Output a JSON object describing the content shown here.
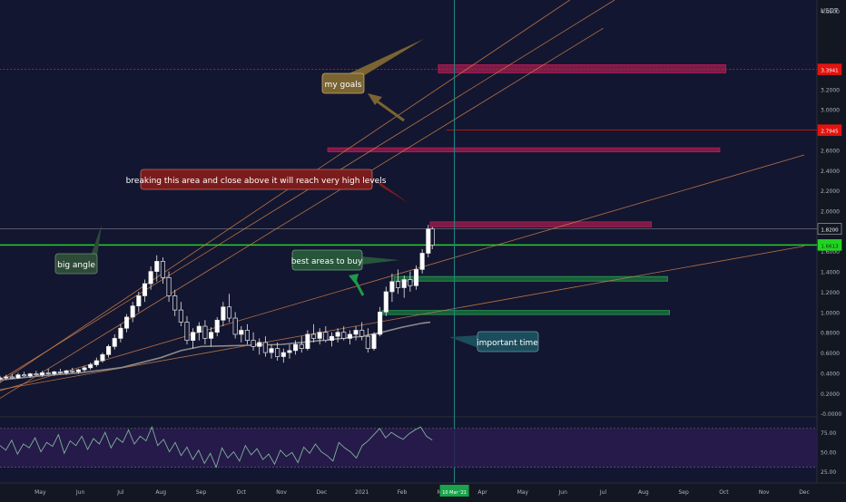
{
  "chart_data": {
    "type": "candlestick",
    "price_axis": {
      "unit_label": "USDT",
      "tick_labels": [
        "4.0000",
        "3.2000",
        "3.0000",
        "2.8000",
        "2.6000",
        "2.4000",
        "2.2000",
        "2.0000",
        "1.8000",
        "1.6000",
        "1.4000",
        "1.2000",
        "1.0000",
        "0.8000",
        "0.6000",
        "0.4000",
        "0.2000",
        "-0.0000"
      ],
      "tick_values": [
        4.0,
        3.2,
        3.0,
        2.8,
        2.6,
        2.4,
        2.2,
        2.0,
        1.8,
        1.6,
        1.4,
        1.2,
        1.0,
        0.8,
        0.6,
        0.4,
        0.2,
        0.0
      ],
      "ylim": [
        -0.05,
        4.15
      ]
    },
    "time_axis": {
      "labels": [
        "Apr",
        "May",
        "Jun",
        "Jul",
        "Aug",
        "Sep",
        "Oct",
        "Nov",
        "Dec",
        "2021",
        "Feb",
        "Mar",
        "Apr",
        "May",
        "Jun",
        "Jul",
        "Aug",
        "Sep",
        "Oct",
        "Nov",
        "Dec"
      ],
      "cursor_label": "10 Mar '21",
      "cursor_month_index": 11.3
    },
    "price_badges": [
      {
        "value": 3.3941,
        "text": "3.3941",
        "color": "#e3130f"
      },
      {
        "value": 2.7945,
        "text": "2.7945",
        "color": "#e3130f"
      },
      {
        "value": 1.82,
        "text": "1.8200",
        "color": "#131722"
      },
      {
        "value": 1.6613,
        "text": "1.6613",
        "color": "#22d422"
      }
    ],
    "candles": [
      {
        "m": 0.0,
        "o": 0.34,
        "h": 0.37,
        "l": 0.31,
        "c": 0.35
      },
      {
        "m": 0.15,
        "o": 0.35,
        "h": 0.38,
        "l": 0.33,
        "c": 0.36
      },
      {
        "m": 0.3,
        "o": 0.36,
        "h": 0.39,
        "l": 0.34,
        "c": 0.35
      },
      {
        "m": 0.45,
        "o": 0.35,
        "h": 0.4,
        "l": 0.34,
        "c": 0.38
      },
      {
        "m": 0.6,
        "o": 0.38,
        "h": 0.41,
        "l": 0.36,
        "c": 0.37
      },
      {
        "m": 0.75,
        "o": 0.37,
        "h": 0.4,
        "l": 0.35,
        "c": 0.39
      },
      {
        "m": 0.9,
        "o": 0.39,
        "h": 0.42,
        "l": 0.37,
        "c": 0.38
      },
      {
        "m": 1.05,
        "o": 0.38,
        "h": 0.42,
        "l": 0.36,
        "c": 0.4
      },
      {
        "m": 1.2,
        "o": 0.4,
        "h": 0.44,
        "l": 0.38,
        "c": 0.39
      },
      {
        "m": 1.35,
        "o": 0.39,
        "h": 0.42,
        "l": 0.37,
        "c": 0.41
      },
      {
        "m": 1.5,
        "o": 0.41,
        "h": 0.44,
        "l": 0.39,
        "c": 0.4
      },
      {
        "m": 1.65,
        "o": 0.4,
        "h": 0.43,
        "l": 0.38,
        "c": 0.42
      },
      {
        "m": 1.8,
        "o": 0.42,
        "h": 0.45,
        "l": 0.4,
        "c": 0.41
      },
      {
        "m": 1.95,
        "o": 0.41,
        "h": 0.44,
        "l": 0.39,
        "c": 0.43
      },
      {
        "m": 2.1,
        "o": 0.43,
        "h": 0.47,
        "l": 0.41,
        "c": 0.45
      },
      {
        "m": 2.25,
        "o": 0.45,
        "h": 0.5,
        "l": 0.43,
        "c": 0.48
      },
      {
        "m": 2.4,
        "o": 0.48,
        "h": 0.55,
        "l": 0.46,
        "c": 0.52
      },
      {
        "m": 2.55,
        "o": 0.52,
        "h": 0.6,
        "l": 0.5,
        "c": 0.58
      },
      {
        "m": 2.7,
        "o": 0.58,
        "h": 0.68,
        "l": 0.55,
        "c": 0.66
      },
      {
        "m": 2.85,
        "o": 0.66,
        "h": 0.78,
        "l": 0.63,
        "c": 0.74
      },
      {
        "m": 3.0,
        "o": 0.74,
        "h": 0.88,
        "l": 0.7,
        "c": 0.84
      },
      {
        "m": 3.15,
        "o": 0.84,
        "h": 0.98,
        "l": 0.8,
        "c": 0.95
      },
      {
        "m": 3.3,
        "o": 0.95,
        "h": 1.1,
        "l": 0.9,
        "c": 1.06
      },
      {
        "m": 3.45,
        "o": 1.06,
        "h": 1.2,
        "l": 1.0,
        "c": 1.16
      },
      {
        "m": 3.6,
        "o": 1.16,
        "h": 1.32,
        "l": 1.1,
        "c": 1.28
      },
      {
        "m": 3.75,
        "o": 1.28,
        "h": 1.45,
        "l": 1.22,
        "c": 1.4
      },
      {
        "m": 3.9,
        "o": 1.4,
        "h": 1.56,
        "l": 1.3,
        "c": 1.5
      },
      {
        "m": 4.05,
        "o": 1.5,
        "h": 1.54,
        "l": 1.28,
        "c": 1.34
      },
      {
        "m": 4.2,
        "o": 1.34,
        "h": 1.4,
        "l": 1.1,
        "c": 1.16
      },
      {
        "m": 4.35,
        "o": 1.16,
        "h": 1.22,
        "l": 0.96,
        "c": 1.02
      },
      {
        "m": 4.5,
        "o": 1.02,
        "h": 1.1,
        "l": 0.86,
        "c": 0.9
      },
      {
        "m": 4.65,
        "o": 0.9,
        "h": 0.96,
        "l": 0.68,
        "c": 0.72
      },
      {
        "m": 4.8,
        "o": 0.72,
        "h": 0.84,
        "l": 0.64,
        "c": 0.8
      },
      {
        "m": 4.95,
        "o": 0.8,
        "h": 0.9,
        "l": 0.72,
        "c": 0.86
      },
      {
        "m": 5.1,
        "o": 0.86,
        "h": 0.92,
        "l": 0.68,
        "c": 0.74
      },
      {
        "m": 5.25,
        "o": 0.74,
        "h": 0.85,
        "l": 0.66,
        "c": 0.8
      },
      {
        "m": 5.4,
        "o": 0.8,
        "h": 0.95,
        "l": 0.76,
        "c": 0.92
      },
      {
        "m": 5.55,
        "o": 0.92,
        "h": 1.1,
        "l": 0.86,
        "c": 1.05
      },
      {
        "m": 5.7,
        "o": 1.05,
        "h": 1.18,
        "l": 0.9,
        "c": 0.94
      },
      {
        "m": 5.85,
        "o": 0.94,
        "h": 1.0,
        "l": 0.74,
        "c": 0.78
      },
      {
        "m": 6.0,
        "o": 0.78,
        "h": 0.86,
        "l": 0.7,
        "c": 0.82
      },
      {
        "m": 6.15,
        "o": 0.82,
        "h": 0.88,
        "l": 0.68,
        "c": 0.72
      },
      {
        "m": 6.3,
        "o": 0.72,
        "h": 0.8,
        "l": 0.62,
        "c": 0.66
      },
      {
        "m": 6.45,
        "o": 0.66,
        "h": 0.74,
        "l": 0.58,
        "c": 0.7
      },
      {
        "m": 6.6,
        "o": 0.7,
        "h": 0.76,
        "l": 0.56,
        "c": 0.6
      },
      {
        "m": 6.75,
        "o": 0.6,
        "h": 0.68,
        "l": 0.54,
        "c": 0.64
      },
      {
        "m": 6.9,
        "o": 0.64,
        "h": 0.7,
        "l": 0.52,
        "c": 0.56
      },
      {
        "m": 7.05,
        "o": 0.56,
        "h": 0.64,
        "l": 0.5,
        "c": 0.6
      },
      {
        "m": 7.2,
        "o": 0.6,
        "h": 0.68,
        "l": 0.54,
        "c": 0.62
      },
      {
        "m": 7.35,
        "o": 0.62,
        "h": 0.72,
        "l": 0.58,
        "c": 0.68
      },
      {
        "m": 7.5,
        "o": 0.68,
        "h": 0.76,
        "l": 0.6,
        "c": 0.64
      },
      {
        "m": 7.65,
        "o": 0.64,
        "h": 0.82,
        "l": 0.62,
        "c": 0.78
      },
      {
        "m": 7.8,
        "o": 0.78,
        "h": 0.88,
        "l": 0.7,
        "c": 0.74
      },
      {
        "m": 7.95,
        "o": 0.74,
        "h": 0.84,
        "l": 0.68,
        "c": 0.8
      },
      {
        "m": 8.1,
        "o": 0.8,
        "h": 0.86,
        "l": 0.7,
        "c": 0.72
      },
      {
        "m": 8.25,
        "o": 0.72,
        "h": 0.8,
        "l": 0.66,
        "c": 0.76
      },
      {
        "m": 8.4,
        "o": 0.76,
        "h": 0.84,
        "l": 0.7,
        "c": 0.8
      },
      {
        "m": 8.55,
        "o": 0.8,
        "h": 0.86,
        "l": 0.72,
        "c": 0.74
      },
      {
        "m": 8.7,
        "o": 0.74,
        "h": 0.82,
        "l": 0.68,
        "c": 0.78
      },
      {
        "m": 8.85,
        "o": 0.78,
        "h": 0.86,
        "l": 0.72,
        "c": 0.82
      },
      {
        "m": 9.0,
        "o": 0.82,
        "h": 0.9,
        "l": 0.72,
        "c": 0.76
      },
      {
        "m": 9.15,
        "o": 0.76,
        "h": 0.84,
        "l": 0.6,
        "c": 0.64
      },
      {
        "m": 9.3,
        "o": 0.64,
        "h": 0.8,
        "l": 0.62,
        "c": 0.78
      },
      {
        "m": 9.45,
        "o": 0.78,
        "h": 1.05,
        "l": 0.76,
        "c": 1.0
      },
      {
        "m": 9.6,
        "o": 1.0,
        "h": 1.25,
        "l": 0.96,
        "c": 1.2
      },
      {
        "m": 9.75,
        "o": 1.2,
        "h": 1.38,
        "l": 1.1,
        "c": 1.3
      },
      {
        "m": 9.9,
        "o": 1.3,
        "h": 1.42,
        "l": 1.18,
        "c": 1.24
      },
      {
        "m": 10.05,
        "o": 1.24,
        "h": 1.36,
        "l": 1.14,
        "c": 1.32
      },
      {
        "m": 10.2,
        "o": 1.32,
        "h": 1.4,
        "l": 1.2,
        "c": 1.26
      },
      {
        "m": 10.35,
        "o": 1.26,
        "h": 1.46,
        "l": 1.22,
        "c": 1.42
      },
      {
        "m": 10.5,
        "o": 1.42,
        "h": 1.62,
        "l": 1.38,
        "c": 1.58
      },
      {
        "m": 10.65,
        "o": 1.58,
        "h": 1.86,
        "l": 1.54,
        "c": 1.82
      },
      {
        "m": 10.75,
        "o": 1.82,
        "h": 1.84,
        "l": 1.62,
        "c": 1.66
      }
    ],
    "moving_average": {
      "color": "#8c8c8c",
      "points": [
        [
          0.0,
          0.33
        ],
        [
          1.0,
          0.37
        ],
        [
          2.0,
          0.4
        ],
        [
          3.0,
          0.45
        ],
        [
          4.0,
          0.55
        ],
        [
          4.5,
          0.62
        ],
        [
          5.0,
          0.66
        ],
        [
          6.0,
          0.67
        ],
        [
          7.0,
          0.68
        ],
        [
          8.0,
          0.72
        ],
        [
          9.0,
          0.76
        ],
        [
          9.5,
          0.8
        ],
        [
          10.0,
          0.85
        ],
        [
          10.5,
          0.89
        ],
        [
          10.7,
          0.9
        ]
      ]
    },
    "trend_lines": [
      {
        "from": [
          -0.2,
          0.1
        ],
        "to": [
          15.0,
          3.8
        ],
        "color": "#d2834a"
      },
      {
        "from": [
          -0.2,
          0.28
        ],
        "to": [
          17.0,
          4.5
        ],
        "color": "#d2834a"
      },
      {
        "from": [
          -0.2,
          0.25
        ],
        "to": [
          15.0,
          4.3
        ],
        "color": "#d2834a"
      },
      {
        "from": [
          -0.2,
          0.2
        ],
        "to": [
          20.0,
          2.55
        ],
        "color": "#d2834a"
      },
      {
        "from": [
          -0.2,
          0.22
        ],
        "to": [
          20.0,
          1.65
        ],
        "color": "#d2834a"
      }
    ],
    "horizontal_lines": [
      {
        "value": 3.3941,
        "from_m": -0.2,
        "color": "#e3130f"
      },
      {
        "value": 2.7945,
        "from_m": 11.1,
        "color": "#e3130f"
      },
      {
        "value": 1.82,
        "from_m": -0.2,
        "color": "#6b6f7a"
      },
      {
        "value": 1.6613,
        "from_m": -0.2,
        "color": "#22d422"
      }
    ],
    "zones": [
      {
        "name": "sell-zone-top",
        "from_m": 10.9,
        "to_m": 18.05,
        "low": 3.36,
        "high": 3.44,
        "fill": "#8f1d4a",
        "stroke": "#c2185b"
      },
      {
        "name": "sell-zone-mid",
        "from_m": 8.15,
        "to_m": 17.9,
        "low": 2.58,
        "high": 2.62,
        "fill": "#8f1d4a",
        "stroke": "#c2185b"
      },
      {
        "name": "breakout-zone",
        "from_m": 10.7,
        "to_m": 16.2,
        "low": 1.84,
        "high": 1.89,
        "fill": "#8f1d4a",
        "stroke": "#c2185b"
      },
      {
        "name": "buy-zone-upper",
        "from_m": 9.8,
        "to_m": 16.6,
        "low": 1.305,
        "high": 1.35,
        "fill": "#1b6b3a",
        "stroke": "#26a05a"
      },
      {
        "name": "buy-zone-lower",
        "from_m": 9.5,
        "to_m": 16.65,
        "low": 0.975,
        "high": 1.015,
        "fill": "#1b6b3a",
        "stroke": "#26a05a"
      }
    ],
    "rsi": {
      "tick_labels": [
        "75.00",
        "50.00",
        "25.00"
      ],
      "tick_values": [
        75,
        50,
        25
      ],
      "band": [
        30,
        80
      ],
      "ylim": [
        18,
        88
      ],
      "values": [
        58,
        52,
        65,
        47,
        60,
        55,
        68,
        50,
        62,
        57,
        72,
        48,
        64,
        58,
        70,
        53,
        67,
        60,
        75,
        55,
        68,
        62,
        78,
        60,
        70,
        64,
        82,
        58,
        66,
        50,
        62,
        45,
        56,
        40,
        52,
        35,
        48,
        30,
        55,
        42,
        50,
        38,
        58,
        46,
        54,
        40,
        47,
        34,
        52,
        44,
        49,
        36,
        56,
        48,
        60,
        50,
        45,
        38,
        62,
        55,
        50,
        42,
        58,
        64,
        72,
        80,
        68,
        75,
        70,
        66,
        73,
        78,
        82,
        70,
        65
      ],
      "color": "#7cb39a"
    },
    "annotations": [
      {
        "text": "my goals",
        "color": "#7a6431"
      },
      {
        "text": "breaking this area and close above it will reach very high levels",
        "color": "#7b1c1c"
      },
      {
        "text": "big angle",
        "color": "#2e4b38"
      },
      {
        "text": "best areas to buy",
        "color": "#27553a"
      },
      {
        "text": "important time",
        "color": "#1c4d5c"
      }
    ]
  }
}
